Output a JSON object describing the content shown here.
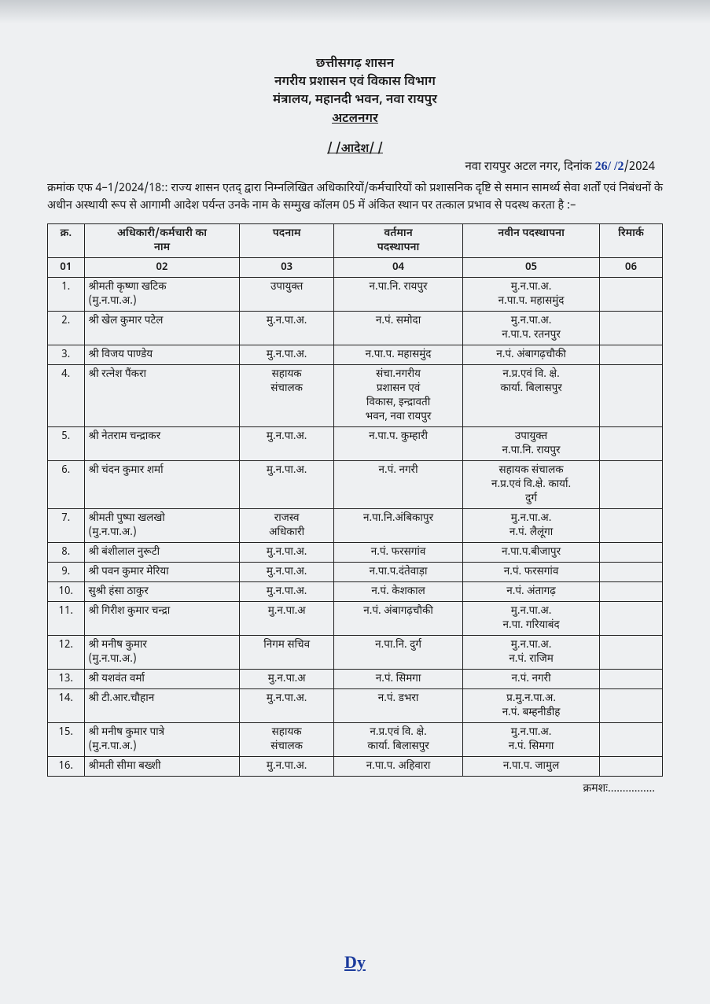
{
  "header": {
    "l1": "छत्तीसगढ़ शासन",
    "l2": "नगरीय प्रशासन एवं विकास विभाग",
    "l3": "मंत्रालय, महानदी भवन, नवा रायपुर",
    "l4": "अटलनगर"
  },
  "order_label": "/ /आदेश/ /",
  "date_prefix": "नवा रायपुर अटल नगर, दिनांक ",
  "hand_date": "26/ /2",
  "date_suffix": "/2024",
  "body": "क्रमांक एफ 4–1/2024/18:: राज्य शासन एतद् द्वारा निम्नलिखित अधिकारियों/कर्मचारियों को प्रशासनिक दृष्टि से समान सामर्थ्य सेवा शर्तों एवं निबंधनों के अधीन अस्थायी रूप से आगामी आदेश पर्यन्त उनके नाम के सम्मुख कॉलम 05 में अंकित स्थान पर तत्काल प्रभाव से पदस्थ करता है :–",
  "columns": {
    "sr": "क्र.",
    "name": "अधिकारी/कर्मचारी का\nनाम",
    "post": "पदनाम",
    "current": "वर्तमान\nपदस्थापना",
    "new": "नवीन पदस्थापना",
    "remark": "रिमार्क"
  },
  "numrow": [
    "01",
    "02",
    "03",
    "04",
    "05",
    "06"
  ],
  "rows": [
    {
      "sr": "1.",
      "name": "श्रीमती कृष्णा खटिक\n(मु.न.पा.अ.)",
      "post": "उपायुक्त",
      "cur": "न.पा.नि. रायपुर",
      "new": "मु.न.पा.अ.\nन.पा.प. महासमुंद",
      "rem": ""
    },
    {
      "sr": "2.",
      "name": "श्री खेल कुमार पटेल",
      "post": "मु.न.पा.अ.",
      "cur": "न.पं. समोदा",
      "new": "मु.न.पा.अ.\nन.पा.प. रतनपुर",
      "rem": ""
    },
    {
      "sr": "3.",
      "name": "श्री विजय पाण्डेय",
      "post": "मु.न.पा.अ.",
      "cur": "न.पा.प. महासमुंद",
      "new": "न.पं. अंबागढ़चौकी",
      "rem": ""
    },
    {
      "sr": "4.",
      "name": "श्री रत्नेश पैंकरा",
      "post": "सहायक\nसंचालक",
      "cur": "संचा.नगरीय\nप्रशासन एवं\nविकास, इन्द्रावती\nभवन, नवा रायपुर",
      "new": "न.प्र.एवं वि. क्षे.\nकार्या. बिलासपुर",
      "rem": ""
    },
    {
      "sr": "5.",
      "name": "श्री नेतराम चन्द्राकर",
      "post": "मु.न.पा.अ.",
      "cur": "न.पा.प. कुम्हारी",
      "new": "उपायुक्त\nन.पा.नि. रायपुर",
      "rem": ""
    },
    {
      "sr": "6.",
      "name": "श्री चंदन कुमार शर्मा",
      "post": "मु.न.पा.अ.",
      "cur": "न.पं. नगरी",
      "new": "सहायक संचालक\nन.प्र.एवं वि.क्षे. कार्या.\nदुर्ग",
      "rem": ""
    },
    {
      "sr": "7.",
      "name": "श्रीमती पुष्पा खलखो\n(मु.न.पा.अ.)",
      "post": "राजस्व\nअधिकारी",
      "cur": "न.पा.नि.अंबिकापुर",
      "new": "मु.न.पा.अ.\nन.पं. लैलूंगा",
      "rem": ""
    },
    {
      "sr": "8.",
      "name": "श्री बंशीलाल नुरूटी",
      "post": "मु.न.पा.अ.",
      "cur": "न.पं. फरसगांव",
      "new": "न.पा.प.बीजापुर",
      "rem": ""
    },
    {
      "sr": "9.",
      "name": "श्री पवन कुमार मेरिया",
      "post": "मु.न.पा.अ.",
      "cur": "न.पा.प.दंतेवाड़ा",
      "new": "न.पं. फरसगांव",
      "rem": ""
    },
    {
      "sr": "10.",
      "name": "सुश्री हंसा ठाकुर",
      "post": "मु.न.पा.अ.",
      "cur": "न.पं. केशकाल",
      "new": "न.पं. अंतागढ़",
      "rem": ""
    },
    {
      "sr": "11.",
      "name": "श्री गिरीश कुमार चन्द्रा",
      "post": "मु.न.पा.अ",
      "cur": "न.पं. अंबागढ़चौकी",
      "new": "मु.न.पा.अ.\nन.पा. गरियाबंद",
      "rem": ""
    },
    {
      "sr": "12.",
      "name": "श्री मनीष कुमार\n(मु.न.पा.अ.)",
      "post": "निगम सचिव",
      "cur": "न.पा.नि. दुर्ग",
      "new": "मु.न.पा.अ.\nन.पं. राजिम",
      "rem": ""
    },
    {
      "sr": "13.",
      "name": "श्री यशवंत वर्मा",
      "post": "मु.न.पा.अ",
      "cur": "न.पं. सिमगा",
      "new": "न.पं. नगरी",
      "rem": ""
    },
    {
      "sr": "14.",
      "name": "श्री टी.आर.चौहान",
      "post": "मु.न.पा.अ.",
      "cur": "न.पं. डभरा",
      "new": "प्र.मु.न.पा.अ.\nन.पं. बम्हनीडीह",
      "rem": ""
    },
    {
      "sr": "15.",
      "name": "श्री मनीष कुमार पात्रे\n(मु.न.पा.अ.)",
      "post": "सहायक\nसंचालक",
      "cur": "न.प्र.एवं वि. क्षे.\nकार्या. बिलासपुर",
      "new": "मु.न.पा.अ.\nन.पं. सिमगा",
      "rem": ""
    },
    {
      "sr": "16.",
      "name": "श्रीमती सीमा बख्शी",
      "post": "मु.न.पा.अ.",
      "cur": "न.पा.प. अहिवारा",
      "new": "न.पा.प. जामुल",
      "rem": ""
    }
  ],
  "continued": "क्रमशः................",
  "signature": "Dy"
}
